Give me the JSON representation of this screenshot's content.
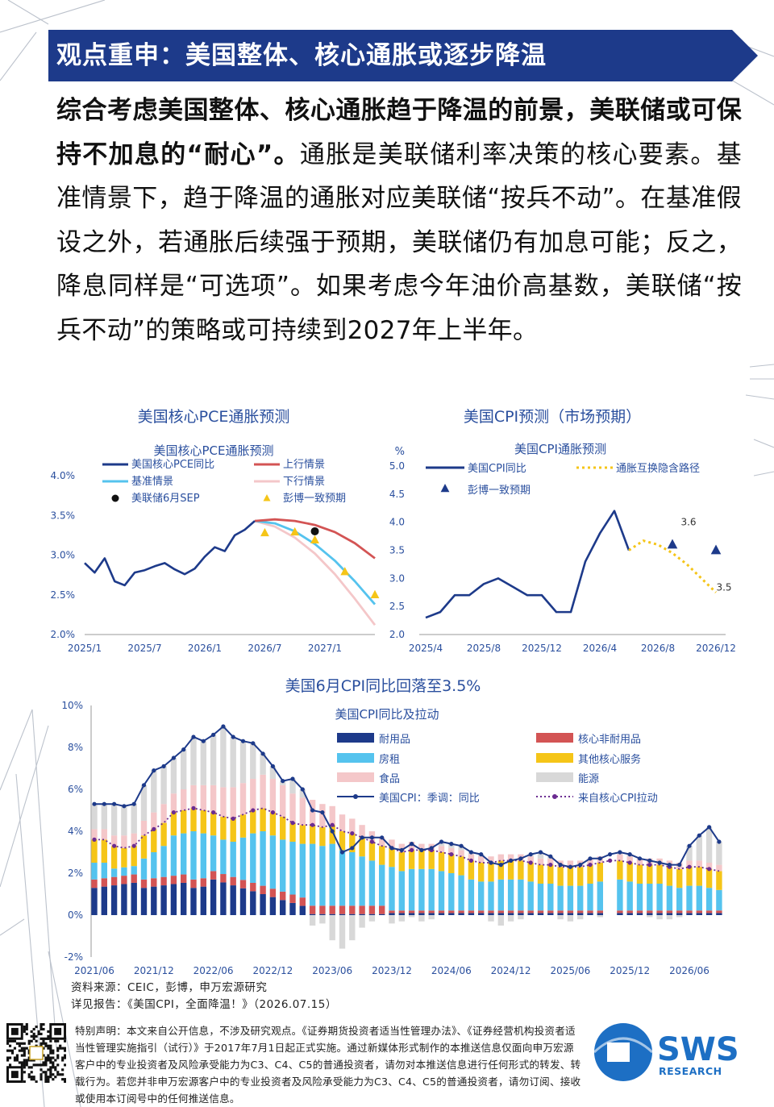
{
  "header": {
    "title": "观点重申：美国整体、核心通胀或逐步降温"
  },
  "paragraph": {
    "bold": "综合考虑美国整体、核心通胀趋于降温的前景，美联储或可保持不加息的“耐心”。",
    "rest": "通胀是美联储利率决策的核心要素。基准情景下，趋于降温的通胀对应美联储“按兵不动”。在基准假设之外，若通胀后续强于预期，美联储仍有加息可能；反之，降息同样是“可选项”。如果考虑今年油价高基数，美联储“按兵不动”的策略或可持续到2027年上半年。"
  },
  "colors": {
    "navy": "#1d3a8a",
    "blue": "#2a5bd7",
    "light_blue": "#55c3ee",
    "red": "#d35454",
    "pink": "#f4c7c9",
    "yellow": "#f5c518",
    "gray": "#d8d8d8",
    "purple": "#6b2c91"
  },
  "chart_data": [
    {
      "type": "line",
      "title": "美国核心PCE通胀预测",
      "subtitle": "美国核心PCE通胀预测",
      "ylim": [
        2.0,
        4.0
      ],
      "yticks": [
        "4.0%",
        "3.5%",
        "3.0%",
        "2.5%",
        "2.0%"
      ],
      "xticks": [
        "2025/1",
        "2025/7",
        "2026/1",
        "2026/7",
        "2027/1"
      ],
      "series": [
        {
          "name": "美国核心PCE同比",
          "x": [
            "2025/1",
            "2025/2",
            "2025/3",
            "2025/4",
            "2025/5",
            "2025/6",
            "2025/7",
            "2025/8",
            "2025/9",
            "2025/10",
            "2025/11",
            "2025/12",
            "2026/1",
            "2026/2",
            "2026/3",
            "2026/4",
            "2026/5",
            "2026/6"
          ],
          "values": [
            2.9,
            2.78,
            2.96,
            2.67,
            2.62,
            2.78,
            2.81,
            2.86,
            2.9,
            2.82,
            2.76,
            2.83,
            2.98,
            3.1,
            3.05,
            3.25,
            3.32,
            3.43
          ]
        },
        {
          "name": "上行情景",
          "x": [
            "2026/6",
            "2026/8",
            "2026/10",
            "2026/12",
            "2027/2",
            "2027/4",
            "2027/6"
          ],
          "values": [
            3.43,
            3.45,
            3.43,
            3.38,
            3.29,
            3.15,
            2.96
          ]
        },
        {
          "name": "基准情景",
          "x": [
            "2026/6",
            "2026/8",
            "2026/10",
            "2026/12",
            "2027/2",
            "2027/4",
            "2027/6"
          ],
          "values": [
            3.43,
            3.4,
            3.3,
            3.14,
            2.93,
            2.67,
            2.38
          ]
        },
        {
          "name": "下行情景",
          "x": [
            "2026/6",
            "2026/8",
            "2026/10",
            "2026/12",
            "2027/2",
            "2027/4",
            "2027/6"
          ],
          "values": [
            3.43,
            3.36,
            3.22,
            3.02,
            2.76,
            2.45,
            2.12
          ]
        },
        {
          "name": "美联储6月SEP",
          "x": [
            "2026/12"
          ],
          "values": [
            3.3
          ]
        },
        {
          "name": "彭博一致预期",
          "x": [
            "2026/7",
            "2026/10",
            "2026/12",
            "2027/3",
            "2027/6"
          ],
          "values": [
            3.28,
            3.29,
            3.19,
            2.79,
            2.5
          ]
        }
      ]
    },
    {
      "type": "line",
      "title": "美国CPI预测（市场预期）",
      "subtitle": "美国CPI通胀预测",
      "yunit": "%",
      "ylim": [
        2.0,
        5.0
      ],
      "yticks": [
        "5.0",
        "4.5",
        "4.0",
        "3.5",
        "3.0",
        "2.5",
        "2.0"
      ],
      "xticks": [
        "2025/4",
        "2025/8",
        "2025/12",
        "2026/4",
        "2026/8",
        "2026/12"
      ],
      "annotations": [
        "3.6",
        "3.5"
      ],
      "series": [
        {
          "name": "美国CPI同比",
          "x": [
            "2025/4",
            "2025/5",
            "2025/6",
            "2025/7",
            "2025/8",
            "2025/9",
            "2025/10",
            "2025/11",
            "2025/12",
            "2026/1",
            "2026/2",
            "2026/3",
            "2026/4",
            "2026/5",
            "2026/6"
          ],
          "values": [
            2.3,
            2.4,
            2.7,
            2.7,
            2.9,
            3.0,
            2.85,
            2.7,
            2.7,
            2.4,
            2.4,
            3.3,
            3.8,
            4.2,
            3.5
          ]
        },
        {
          "name": "通胀互换隐含路径",
          "x": [
            "2026/6",
            "2026/7",
            "2026/8",
            "2026/9",
            "2026/10",
            "2026/11",
            "2026/12"
          ],
          "values": [
            3.5,
            3.67,
            3.6,
            3.45,
            3.25,
            3.0,
            2.75
          ]
        },
        {
          "name": "彭博一致预期",
          "x": [
            "2026/9",
            "2026/12"
          ],
          "values": [
            3.6,
            3.5
          ]
        }
      ]
    },
    {
      "type": "bar",
      "title": "美国6月CPI同比回落至3.5%",
      "subtitle": "美国CPI同比及拉动",
      "ylim": [
        -2,
        10
      ],
      "yticks": [
        "10%",
        "8%",
        "6%",
        "4%",
        "2%",
        "0%",
        "-2%"
      ],
      "xticks": [
        "2021/06",
        "2021/12",
        "2022/06",
        "2022/12",
        "2023/06",
        "2023/12",
        "2024/06",
        "2024/12",
        "2025/06",
        "2025/12",
        "2026/06"
      ],
      "legend": [
        "耐用品",
        "核心非耐用品",
        "房租",
        "其他核心服务",
        "食品",
        "能源",
        "美国CPI：季调：同比",
        "来自核心CPI拉动"
      ],
      "x_range": [
        "2021/06",
        "2026/06"
      ],
      "cpi_yoy": [
        5.3,
        5.3,
        5.3,
        5.2,
        5.3,
        6.2,
        6.9,
        7.1,
        7.5,
        7.9,
        8.5,
        8.3,
        8.6,
        9.0,
        8.5,
        8.3,
        8.2,
        7.7,
        7.1,
        6.4,
        6.5,
        6.0,
        5.0,
        4.9,
        4.0,
        3.0,
        3.2,
        3.7,
        3.7,
        3.7,
        3.2,
        3.1,
        3.4,
        3.1,
        3.2,
        3.5,
        3.4,
        3.3,
        3.0,
        2.9,
        2.5,
        2.4,
        2.6,
        2.7,
        2.9,
        3.0,
        2.8,
        2.4,
        2.3,
        2.4,
        2.7,
        2.7,
        2.9,
        3.0,
        2.9,
        2.7,
        2.6,
        2.5,
        2.4,
        2.4,
        3.3,
        3.8,
        4.2,
        3.5
      ],
      "core_pull": [
        3.6,
        3.6,
        3.3,
        3.2,
        3.3,
        3.8,
        4.1,
        4.4,
        4.9,
        5.0,
        5.1,
        5.0,
        4.9,
        4.7,
        4.6,
        4.8,
        5.0,
        5.1,
        4.9,
        4.7,
        4.4,
        4.3,
        4.3,
        4.2,
        4.3,
        4.0,
        3.9,
        3.7,
        3.5,
        3.3,
        3.2,
        3.0,
        3.1,
        3.1,
        3.1,
        3.0,
        2.9,
        2.8,
        2.6,
        2.5,
        2.5,
        2.6,
        2.6,
        2.6,
        2.5,
        2.4,
        2.4,
        2.3,
        2.3,
        2.3,
        2.4,
        2.5,
        2.6,
        2.6,
        2.5,
        2.4,
        2.4,
        2.4,
        2.3,
        2.2,
        2.3,
        2.3,
        2.2,
        2.1
      ],
      "food": [
        0.5,
        0.5,
        0.5,
        0.6,
        0.6,
        0.7,
        0.8,
        0.9,
        0.9,
        1.0,
        1.1,
        1.2,
        1.3,
        1.4,
        1.5,
        1.5,
        1.5,
        1.6,
        1.6,
        1.5,
        1.4,
        1.3,
        1.2,
        1.1,
        0.9,
        0.8,
        0.7,
        0.6,
        0.5,
        0.4,
        0.4,
        0.4,
        0.4,
        0.3,
        0.3,
        0.3,
        0.3,
        0.3,
        0.3,
        0.3,
        0.3,
        0.3,
        0.3,
        0.3,
        0.3,
        0.3,
        0.3,
        0.3,
        0.3,
        0.3,
        0.3,
        0.3,
        0.3,
        0.3,
        0.3,
        0.3,
        0.3,
        0.3,
        0.3,
        0.3,
        0.3,
        0.3,
        0.3,
        0.3
      ],
      "energy": [
        1.2,
        1.2,
        1.5,
        1.4,
        1.4,
        1.7,
        2.0,
        1.8,
        1.7,
        1.9,
        2.3,
        2.1,
        2.4,
        2.9,
        2.4,
        2.0,
        1.7,
        1.0,
        0.6,
        0.2,
        0.7,
        0.4,
        -0.5,
        -0.4,
        -1.2,
        -1.6,
        -1.2,
        -0.6,
        -0.3,
        0.0,
        -0.4,
        -0.3,
        -0.1,
        -0.3,
        -0.2,
        0.2,
        0.2,
        0.2,
        0.1,
        0.1,
        -0.3,
        -0.5,
        -0.3,
        -0.2,
        0.1,
        0.3,
        0.1,
        -0.2,
        -0.3,
        -0.2,
        0.0,
        -0.1,
        0.0,
        0.1,
        0.1,
        0.0,
        -0.1,
        -0.2,
        -0.2,
        -0.1,
        0.7,
        1.2,
        1.7,
        1.1
      ]
    }
  ],
  "footer": {
    "source": "资料来源：CEIC，彭博，申万宏源研究",
    "report": "详见报告：《美国CPI，全面降温！》（2026.07.15）",
    "disclaimer": "特别声明：本文来自公开信息，不涉及研究观点。《证券期货投资者适当性管理办法》、《证券经营机构投资者适当性管理实施指引（试行）》于2017年7月1日起正式实施。通过新媒体形式制作的本推送信息仅面向申万宏源客户中的专业投资者及风险承受能力为C3、C4、C5的普通投资者，请勿对本推送信息进行任何形式的转发、转载行为。若您并非申万宏源客户中的专业投资者及风险承受能力为C3、C4、C5的普通投资者，请勿订阅、接收或使用本订阅号中的任何推送信息。",
    "logo_main": "SWS",
    "logo_sub": "RESEARCH"
  }
}
